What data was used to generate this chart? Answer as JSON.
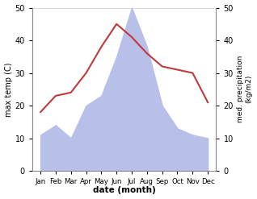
{
  "months": [
    "Jan",
    "Feb",
    "Mar",
    "Apr",
    "May",
    "Jun",
    "Jul",
    "Aug",
    "Sep",
    "Oct",
    "Nov",
    "Dec"
  ],
  "temperature": [
    18,
    23,
    24,
    30,
    38,
    45,
    41,
    36,
    32,
    31,
    30,
    21
  ],
  "precipitation": [
    11,
    14,
    10,
    20,
    23,
    35,
    50,
    38,
    20,
    13,
    11,
    10
  ],
  "temp_color": "#c0393b",
  "precip_fill_color": "#b8bfe8",
  "ylabel_left": "max temp (C)",
  "ylabel_right": "med. precipitation\n(kg/m2)",
  "xlabel": "date (month)",
  "ylim": [
    0,
    50
  ],
  "bg_color": "#ffffff"
}
